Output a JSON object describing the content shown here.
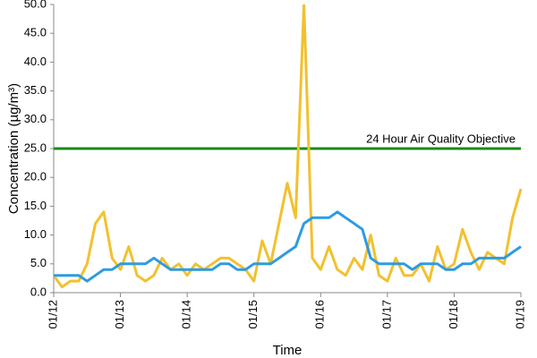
{
  "chart_data": {
    "type": "line",
    "y_label": "Concentration (µg/m³)",
    "x_label": "Time",
    "x": [
      0,
      0.125,
      0.25,
      0.375,
      0.5,
      0.625,
      0.75,
      0.875,
      1,
      1.125,
      1.25,
      1.375,
      1.5,
      1.625,
      1.75,
      1.875,
      2,
      2.125,
      2.25,
      2.375,
      2.5,
      2.625,
      2.75,
      2.875,
      3,
      3.125,
      3.25,
      3.375,
      3.5,
      3.625,
      3.75,
      3.875,
      4,
      4.125,
      4.25,
      4.375,
      4.5,
      4.625,
      4.75,
      4.875,
      5,
      5.125,
      5.25,
      5.375,
      5.5,
      5.625,
      5.75,
      5.875,
      6,
      6.125,
      6.25,
      6.375,
      6.5,
      6.625,
      6.75,
      6.875,
      7
    ],
    "series": [
      {
        "color": "#f2c12e",
        "values": [
          3,
          1,
          2,
          2,
          5,
          12,
          14,
          6,
          4,
          8,
          3,
          2,
          3,
          6,
          4,
          5,
          3,
          5,
          4,
          5,
          6,
          6,
          5,
          4,
          2,
          9,
          5,
          12,
          19,
          13,
          50,
          6,
          4,
          8,
          4,
          3,
          6,
          4,
          10,
          3,
          2,
          6,
          3,
          3,
          5,
          2,
          8,
          4,
          5,
          11,
          7,
          4,
          7,
          6,
          5,
          13,
          18
        ]
      },
      {
        "color": "#2e9be0",
        "values": [
          3,
          3,
          3,
          3,
          2,
          3,
          4,
          4,
          5,
          5,
          5,
          5,
          6,
          5,
          4,
          4,
          4,
          4,
          4,
          4,
          5,
          5,
          4,
          4,
          5,
          5,
          5,
          6,
          7,
          8,
          12,
          13,
          13,
          13,
          14,
          13,
          12,
          11,
          6,
          5,
          5,
          5,
          5,
          4,
          5,
          5,
          5,
          4,
          4,
          5,
          5,
          6,
          6,
          6,
          6,
          7,
          8
        ]
      }
    ],
    "threshold": {
      "value": 25,
      "label": "24 Hour Air Quality Objective",
      "color": "#1a8a1a"
    },
    "xlim": [
      0,
      7
    ],
    "xticks": [
      {
        "value": 0,
        "label": "01/12"
      },
      {
        "value": 1,
        "label": "01/13"
      },
      {
        "value": 2,
        "label": "01/14"
      },
      {
        "value": 3,
        "label": "01/15"
      },
      {
        "value": 4,
        "label": "01/16"
      },
      {
        "value": 5,
        "label": "01/17"
      },
      {
        "value": 6,
        "label": "01/18"
      },
      {
        "value": 7,
        "label": "01/19"
      }
    ],
    "ylim": [
      0,
      50
    ],
    "yticks": [
      {
        "value": 0,
        "label": "0.0"
      },
      {
        "value": 5,
        "label": "5.0"
      },
      {
        "value": 10,
        "label": "10.0"
      },
      {
        "value": 15,
        "label": "15.0"
      },
      {
        "value": 20,
        "label": "20.0"
      },
      {
        "value": 25,
        "label": "25.0"
      },
      {
        "value": 30,
        "label": "30.0"
      },
      {
        "value": 35,
        "label": "35.0"
      },
      {
        "value": 40,
        "label": "40.0"
      },
      {
        "value": 45,
        "label": "45.0"
      },
      {
        "value": 50,
        "label": "50.0"
      }
    ]
  }
}
